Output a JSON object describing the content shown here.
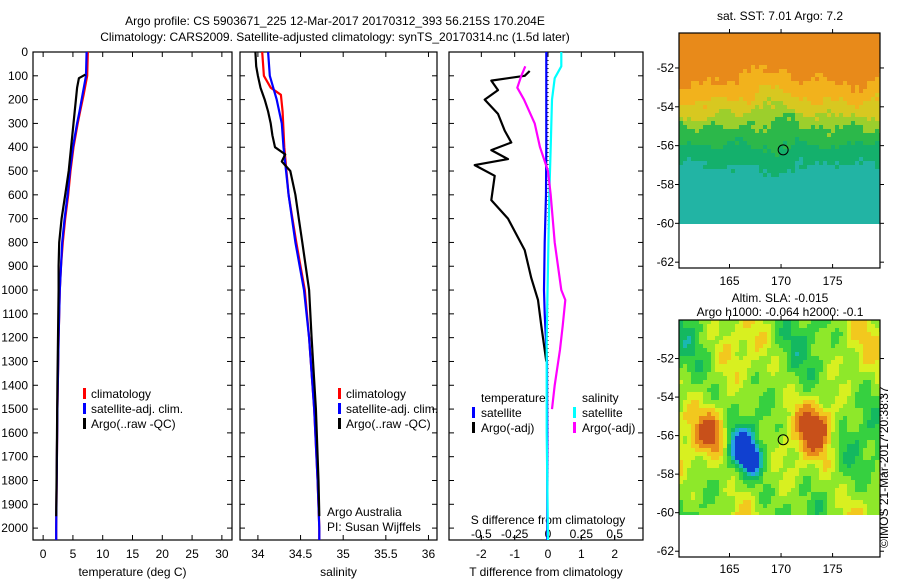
{
  "title": {
    "line1": "Argo profile: CS 5903671_225 12-Mar-2017 20170312_393 56.215S 170.204E",
    "line2": "Climatology: CARS2009. Satellite-adjusted climatology: synTS_20170314.nc (1.5d later)"
  },
  "chart_data": [
    {
      "type": "line",
      "name": "temperature-profile",
      "xlabel": "temperature (deg C)",
      "ylabel": "depth",
      "xlim": [
        -1.7,
        31.7
      ],
      "ylim": [
        2050,
        0
      ],
      "xticks": [
        "0",
        "5",
        "10",
        "15",
        "20",
        "25",
        "30"
      ],
      "xtick_values": [
        0,
        5,
        10,
        15,
        20,
        25,
        30
      ],
      "yticks": [
        "0",
        "100",
        "200",
        "300",
        "400",
        "500",
        "600",
        "700",
        "800",
        "900",
        "1000",
        "1100",
        "1200",
        "1300",
        "1400",
        "1500",
        "1600",
        "1700",
        "1800",
        "1900",
        "2000"
      ],
      "legend": [
        "climatology",
        "satellite-adj. clim.",
        "Argo(..raw -QC)"
      ],
      "series": [
        {
          "name": "climatology",
          "color": "#ff0000",
          "depth": [
            0,
            100,
            180,
            250,
            300,
            400,
            500,
            600,
            700,
            800,
            900,
            1000,
            1200,
            1500,
            2000,
            2050
          ],
          "values": [
            7.5,
            7.4,
            6.8,
            6.2,
            5.8,
            5.1,
            4.6,
            4.2,
            3.7,
            3.3,
            3.0,
            2.8,
            2.6,
            2.4,
            2.2,
            2.2
          ]
        },
        {
          "name": "satellite-adj. clim.",
          "color": "#0000ff",
          "depth": [
            0,
            100,
            180,
            250,
            300,
            400,
            500,
            600,
            700,
            800,
            900,
            1000,
            1200,
            1500,
            2000,
            2050
          ],
          "values": [
            7.3,
            7.2,
            6.6,
            6.1,
            5.7,
            5.0,
            4.5,
            4.1,
            3.6,
            3.2,
            3.0,
            2.8,
            2.6,
            2.4,
            2.2,
            2.2
          ]
        },
        {
          "name": "Argo(..raw -QC)",
          "color": "#000000",
          "depth": [
            95,
            110,
            150,
            200,
            300,
            400,
            450,
            500,
            600,
            700,
            800,
            900,
            1000,
            1200,
            1400,
            1700,
            1950
          ],
          "values": [
            7.1,
            6.0,
            5.7,
            5.5,
            5.1,
            4.7,
            4.5,
            4.3,
            3.7,
            3.1,
            2.7,
            2.6,
            2.6,
            2.5,
            2.4,
            2.3,
            2.2
          ]
        }
      ]
    },
    {
      "type": "line",
      "name": "salinity-profile",
      "xlabel": "salinity",
      "xlim": [
        33.79,
        36.1
      ],
      "ylim": [
        2050,
        0
      ],
      "xticks": [
        "34",
        "34.5",
        "35",
        "35.5",
        "36"
      ],
      "xtick_values": [
        34,
        34.5,
        35,
        35.5,
        36
      ],
      "legend": [
        "climatology",
        "satellite-adj. clim.",
        "Argo(..raw -QC)"
      ],
      "annotation": [
        "Argo Australia",
        "PI: Susan Wijffels"
      ],
      "series": [
        {
          "name": "climatology",
          "color": "#ff0000",
          "depth": [
            0,
            100,
            150,
            180,
            250,
            400,
            600,
            800,
            900,
            1000,
            1200,
            1500,
            1800,
            2000,
            2050
          ],
          "values": [
            34.05,
            34.07,
            34.15,
            34.27,
            34.29,
            34.31,
            34.36,
            34.45,
            34.5,
            34.55,
            34.6,
            34.66,
            34.7,
            34.72,
            34.72
          ]
        },
        {
          "name": "satellite-adj. clim.",
          "color": "#0000ff",
          "depth": [
            0,
            100,
            200,
            300,
            400,
            600,
            800,
            1000,
            1200,
            1500,
            1800,
            2000,
            2050
          ],
          "values": [
            34.12,
            34.14,
            34.22,
            34.28,
            34.3,
            34.36,
            34.44,
            34.54,
            34.6,
            34.66,
            34.7,
            34.72,
            34.72
          ]
        },
        {
          "name": "Argo(..raw -QC)",
          "color": "#000000",
          "depth": [
            0,
            60,
            100,
            150,
            200,
            250,
            300,
            350,
            400,
            430,
            460,
            500,
            600,
            700,
            800,
            1000,
            1200,
            1500,
            1800,
            1950
          ],
          "values": [
            33.97,
            33.98,
            34.0,
            34.03,
            34.08,
            34.12,
            34.15,
            34.17,
            34.2,
            34.32,
            34.28,
            34.38,
            34.44,
            34.48,
            34.52,
            34.6,
            34.63,
            34.68,
            34.71,
            34.72
          ]
        }
      ]
    },
    {
      "type": "line",
      "name": "difference-from-climatology",
      "xlabel": "T difference from climatology",
      "x2label": "S difference from climatology",
      "xlim": [
        -2.97,
        2.85
      ],
      "ylim": [
        2050,
        0
      ],
      "xticks": [
        "-2",
        "-1",
        "0",
        "1",
        "2"
      ],
      "xtick_values": [
        -2,
        -1,
        0,
        1,
        2
      ],
      "x2ticks": [
        "-0.5",
        "-0.25",
        "0",
        "0.25",
        "0.5"
      ],
      "x2tick_values": [
        -0.5,
        -0.25,
        0,
        0.25,
        0.5
      ],
      "legend_temperature": {
        "title": "temperature",
        "items": [
          "satellite",
          "Argo(-adj)"
        ]
      },
      "legend_salinity": {
        "title": "salinity",
        "items": [
          "satellite",
          "Argo(-adj)"
        ]
      },
      "series": [
        {
          "name": "T satellite",
          "axis": "T",
          "color": "#0000ff",
          "depth": [
            0,
            200,
            400,
            600,
            800,
            1000,
            1100,
            1300,
            1600,
            2050
          ],
          "values": [
            -0.05,
            -0.05,
            -0.05,
            -0.06,
            -0.1,
            -0.12,
            -0.1,
            -0.03,
            -0.02,
            -0.02
          ]
        },
        {
          "name": "T Argo(-adj)",
          "axis": "T",
          "color": "#000000",
          "depth": [
            80,
            100,
            120,
            160,
            200,
            260,
            330,
            380,
            412,
            450,
            475,
            520,
            622,
            700,
            832,
            950,
            1042,
            1150,
            1252,
            1300
          ],
          "values": [
            -0.55,
            -0.7,
            -1.7,
            -1.5,
            -1.9,
            -1.5,
            -1.3,
            -1.1,
            -1.7,
            -1.2,
            -2.2,
            -1.6,
            -1.7,
            -1.2,
            -0.7,
            -0.5,
            -0.3,
            -0.2,
            -0.1,
            -0.05
          ]
        },
        {
          "name": "S satellite",
          "axis": "S",
          "color": "#00ffff",
          "depth": [
            0,
            60,
            110,
            200,
            400,
            600,
            900,
            1200,
            1600,
            2050
          ],
          "values": [
            0.1,
            0.1,
            0.05,
            0.03,
            0.02,
            0.01,
            0.0,
            -0.01,
            -0.01,
            0.0
          ]
        },
        {
          "name": "S Argo(-adj)",
          "axis": "S",
          "color": "#ff00ff",
          "depth": [
            60,
            100,
            150,
            200,
            300,
            400,
            500,
            600,
            800,
            1000,
            1042,
            1150,
            1250,
            1400,
            1500
          ],
          "values": [
            -0.17,
            -0.2,
            -0.23,
            -0.18,
            -0.1,
            -0.06,
            0.0,
            0.02,
            0.05,
            0.1,
            0.13,
            0.11,
            0.09,
            0.05,
            0.03
          ]
        }
      ]
    },
    {
      "type": "heatmap",
      "name": "sst-map",
      "title": "sat. SST: 7.01 Argo: 7.2",
      "xlim": [
        160.1,
        179.6
      ],
      "ylim": [
        -62.3,
        -50.2
      ],
      "data_extent_lat": [
        -60,
        -50.2
      ],
      "xticks": [
        "165",
        "170",
        "175"
      ],
      "xtick_values": [
        165,
        170,
        175
      ],
      "yticks": [
        "-52",
        "-54",
        "-56",
        "-58",
        "-60",
        "-62"
      ],
      "ytick_values": [
        -52,
        -54,
        -56,
        -58,
        -60,
        -62
      ],
      "argo_position": [
        170.204,
        -56.215
      ]
    },
    {
      "type": "heatmap",
      "name": "sla-map",
      "title": "Altim. SLA: -0.015",
      "subtitle": "Argo h1000: -0.064 h2000: -0.1",
      "xlim": [
        160.1,
        179.6
      ],
      "ylim": [
        -62.3,
        -50.0
      ],
      "data_extent_lat": [
        -60,
        -50.0
      ],
      "xticks": [
        "165",
        "170",
        "175"
      ],
      "xtick_values": [
        165,
        170,
        175
      ],
      "yticks": [
        "-52",
        "-54",
        "-56",
        "-58",
        "-60",
        "-62"
      ],
      "ytick_values": [
        -52,
        -54,
        -56,
        -58,
        -60,
        -62
      ],
      "argo_position": [
        170.204,
        -56.215
      ]
    }
  ],
  "copyright": "©IMOS 21-Mar-2017 20:38:37"
}
